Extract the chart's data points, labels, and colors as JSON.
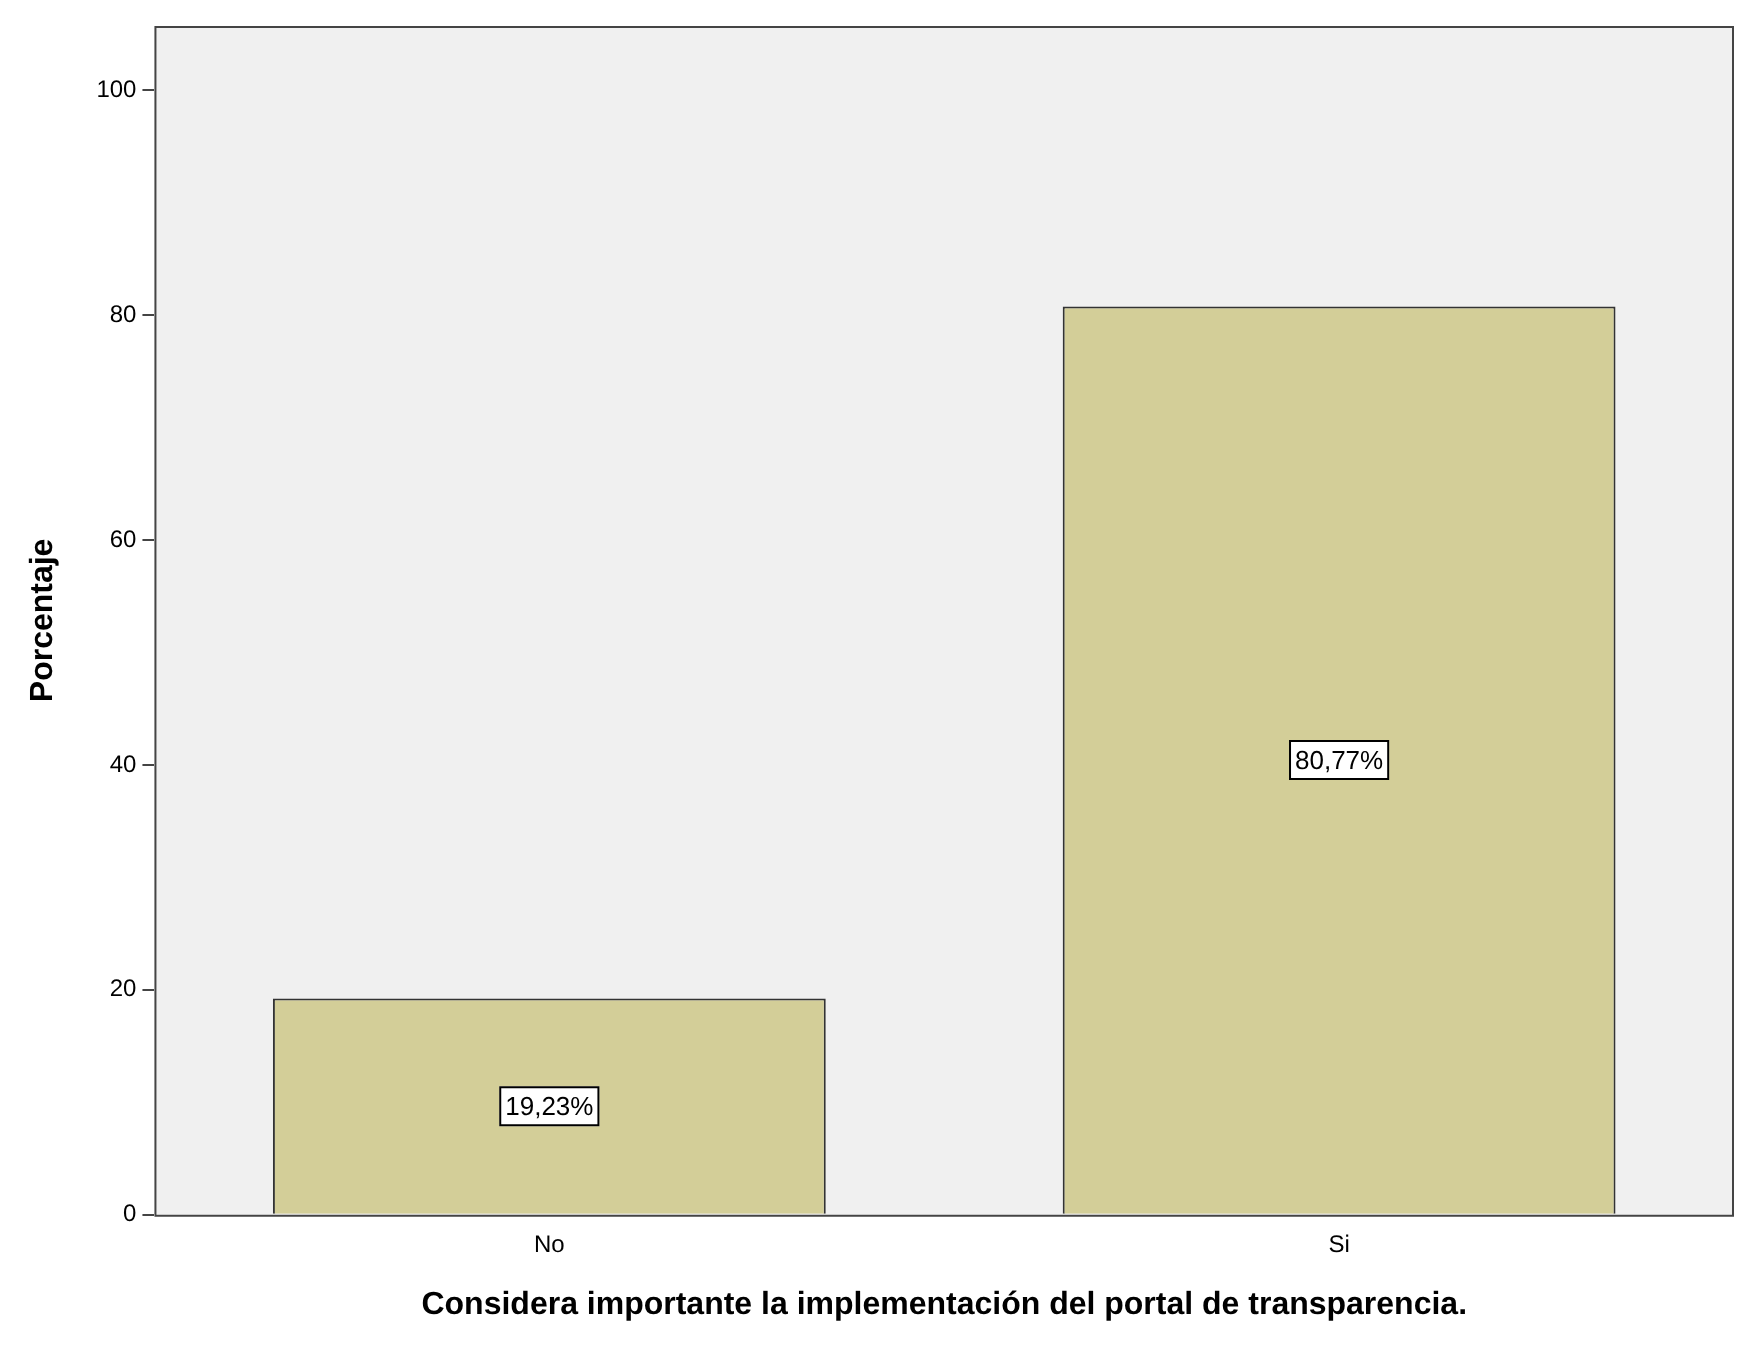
{
  "chart_data": {
    "type": "bar",
    "xlabel": "Considera importante la implementación del portal de transparencia.",
    "ylabel": "Porcentaje",
    "categories": [
      "No",
      "Si"
    ],
    "values": [
      19.23,
      80.77
    ],
    "color": "#d3ce98",
    "value_labels": [
      "19,23%",
      "80,77%"
    ],
    "ylim": [
      0,
      105.7
    ],
    "yticks": [
      0,
      20,
      40,
      60,
      80,
      100
    ]
  }
}
